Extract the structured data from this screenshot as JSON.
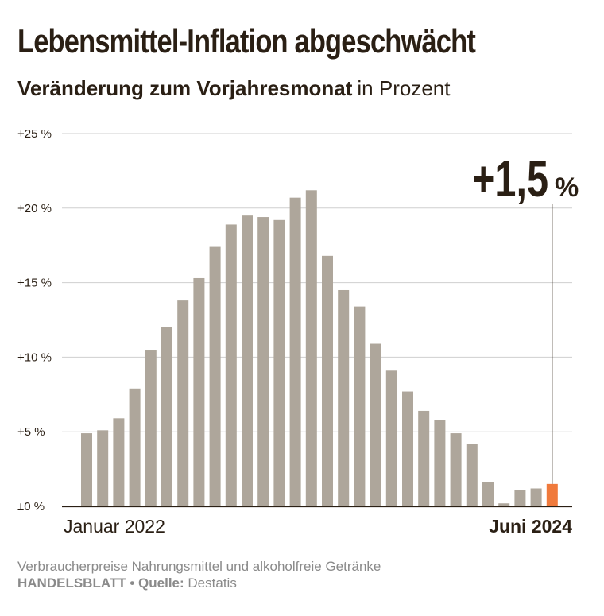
{
  "header": {
    "title": "Lebensmittel-Inflation abgeschwächt",
    "subtitle_strong": "Veränderung zum Vorjahresmonat",
    "subtitle_light": "in Prozent"
  },
  "chart_data": {
    "type": "bar",
    "ylim": [
      0,
      25
    ],
    "yticks": [
      0,
      5,
      10,
      15,
      20,
      25
    ],
    "ytick_labels": [
      "±0 %",
      "+5 %",
      "+10 %",
      "+15 %",
      "+20 %",
      "+25 %"
    ],
    "grid": true,
    "x_start_label": "Januar 2022",
    "x_end_label": "Juni 2024",
    "values": [
      4.9,
      5.1,
      5.9,
      7.9,
      10.5,
      12.0,
      13.8,
      15.3,
      17.4,
      18.9,
      19.5,
      19.4,
      19.2,
      20.7,
      21.2,
      16.8,
      14.5,
      13.4,
      10.9,
      9.1,
      7.7,
      6.4,
      5.8,
      4.9,
      4.2,
      1.6,
      0.2,
      1.1,
      1.2,
      1.5
    ],
    "highlight_index": 29,
    "annotation_value": "+1,5",
    "annotation_unit": "%",
    "bar_color": "#aea69b",
    "highlight_color": "#f07a3c"
  },
  "footer": {
    "description": "Verbraucherpreise Nahrungsmittel und alkoholfreie Getränke",
    "publisher": "HANDELSBLATT",
    "separator": "•",
    "source_label": "Quelle:",
    "source": "Destatis"
  }
}
